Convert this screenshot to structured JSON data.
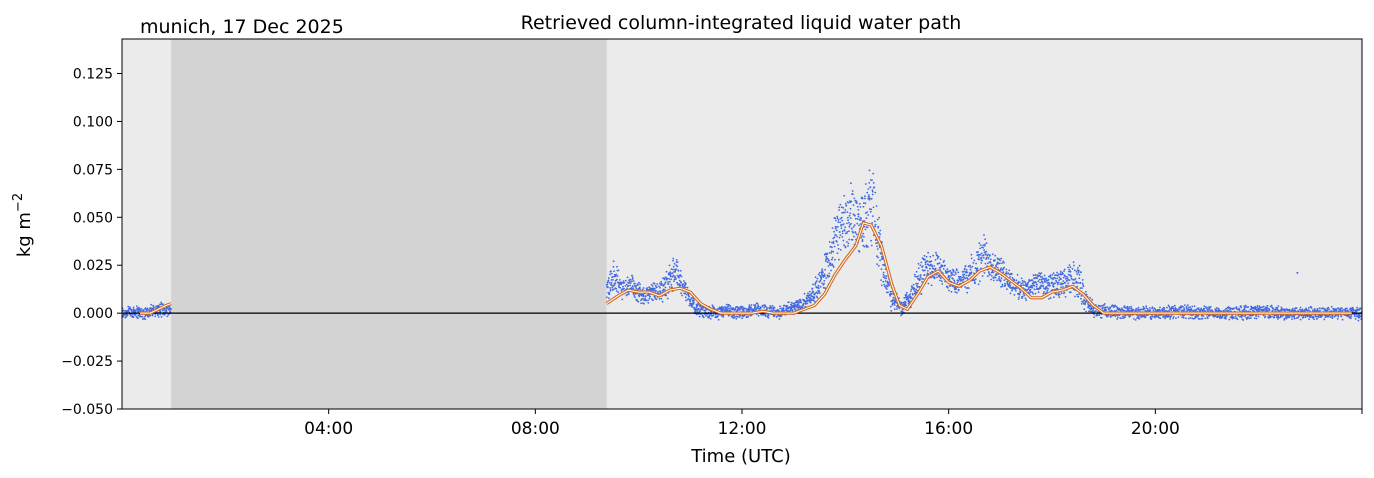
{
  "chart_data": {
    "type": "scatter",
    "title": "Retrieved column-integrated liquid water path",
    "subtitle": "munich, 17 Dec 2025",
    "xlabel": "Time (UTC)",
    "ylabel": "kg m",
    "ylabel_superscript": "−2",
    "xlim": [
      0,
      24
    ],
    "ylim": [
      -0.05,
      0.143
    ],
    "xticks": [
      4,
      8,
      12,
      16,
      20
    ],
    "xtick_labels": [
      "04:00",
      "08:00",
      "12:00",
      "16:00",
      "20:00"
    ],
    "yticks": [
      -0.05,
      -0.025,
      0.0,
      0.025,
      0.05,
      0.075,
      0.1,
      0.125
    ],
    "ytick_labels": [
      "−0.050",
      "−0.025",
      "0.000",
      "0.025",
      "0.050",
      "0.075",
      "0.100",
      "0.125"
    ],
    "shaded_regions": [
      {
        "x_start": 0.95,
        "x_end": 9.38,
        "color": "#d3d3d3"
      }
    ],
    "background_color": "#ebebeb",
    "zero_line": true,
    "series": [
      {
        "kind": "scatter",
        "color": "#4169e1",
        "segments": [
          {
            "x": [
              0.0,
              0.2,
              0.4,
              0.6,
              0.8,
              0.95
            ],
            "y": [
              0.0,
              0.001,
              0.0,
              0.001,
              0.002,
              0.002
            ],
            "spread": [
              0.004,
              0.004,
              0.004,
              0.004,
              0.004,
              0.004
            ]
          },
          {
            "x": [
              9.38,
              9.5,
              9.7,
              9.9,
              10.1,
              10.3,
              10.5,
              10.7,
              10.9,
              11.1,
              11.3,
              11.5,
              11.7,
              11.9,
              12.1,
              12.3,
              12.5,
              12.7,
              12.9,
              13.1,
              13.3,
              13.5,
              13.7,
              13.9,
              14.1,
              14.3,
              14.5,
              14.7,
              14.9,
              15.1,
              15.3,
              15.5,
              15.7,
              15.9,
              16.1,
              16.3,
              16.5,
              16.7,
              16.9,
              17.1,
              17.3,
              17.5,
              17.7,
              17.9,
              18.1,
              18.3,
              18.5,
              18.7,
              18.9,
              19.2,
              19.6,
              20.0,
              20.5,
              21.0,
              21.5,
              22.0,
              22.5,
              23.0,
              23.5,
              24.0
            ],
            "y": [
              0.012,
              0.018,
              0.012,
              0.014,
              0.009,
              0.011,
              0.013,
              0.022,
              0.012,
              0.002,
              0.001,
              0.0,
              0.001,
              0.0,
              0.001,
              0.002,
              0.001,
              0.0,
              0.002,
              0.004,
              0.008,
              0.015,
              0.03,
              0.045,
              0.05,
              0.048,
              0.058,
              0.028,
              0.008,
              0.003,
              0.01,
              0.022,
              0.024,
              0.02,
              0.017,
              0.018,
              0.022,
              0.03,
              0.024,
              0.019,
              0.014,
              0.012,
              0.016,
              0.014,
              0.015,
              0.016,
              0.018,
              0.004,
              0.001,
              0.001,
              0.0,
              0.0,
              0.001,
              0.0,
              0.0,
              0.001,
              0.0,
              0.0,
              0.0,
              0.0
            ],
            "spread": [
              0.008,
              0.012,
              0.007,
              0.008,
              0.005,
              0.006,
              0.008,
              0.01,
              0.006,
              0.004,
              0.004,
              0.004,
              0.004,
              0.004,
              0.004,
              0.004,
              0.004,
              0.004,
              0.004,
              0.004,
              0.005,
              0.008,
              0.016,
              0.018,
              0.02,
              0.018,
              0.028,
              0.014,
              0.008,
              0.005,
              0.008,
              0.012,
              0.01,
              0.008,
              0.007,
              0.008,
              0.012,
              0.014,
              0.01,
              0.008,
              0.007,
              0.006,
              0.008,
              0.007,
              0.008,
              0.01,
              0.012,
              0.006,
              0.004,
              0.004,
              0.004,
              0.004,
              0.004,
              0.004,
              0.004,
              0.004,
              0.004,
              0.004,
              0.004,
              0.004
            ]
          }
        ],
        "isolated_points": [
          [
            22.75,
            0.021
          ]
        ]
      },
      {
        "kind": "line",
        "color": "#d2691e",
        "inner_color": "#ffffff",
        "segments": [
          {
            "x": [
              0.35,
              0.55,
              0.7,
              0.85,
              0.95
            ],
            "y": [
              0.0,
              0.0,
              0.002,
              0.004,
              0.005
            ]
          },
          {
            "x": [
              9.38,
              9.6,
              9.8,
              10.0,
              10.2,
              10.4,
              10.6,
              10.8,
              11.0,
              11.2,
              11.4,
              11.6,
              11.8,
              12.0,
              12.2,
              12.4,
              12.6,
              12.8,
              13.0,
              13.2,
              13.4,
              13.6,
              13.8,
              14.0,
              14.2,
              14.35,
              14.5,
              14.7,
              14.9,
              15.05,
              15.2,
              15.4,
              15.6,
              15.8,
              16.0,
              16.2,
              16.4,
              16.6,
              16.8,
              17.0,
              17.2,
              17.4,
              17.6,
              17.8,
              18.0,
              18.2,
              18.4,
              18.6,
              18.8,
              19.0,
              19.4,
              20.0,
              21.0,
              22.0,
              23.0,
              23.8
            ],
            "y": [
              0.005,
              0.009,
              0.012,
              0.011,
              0.011,
              0.009,
              0.012,
              0.013,
              0.011,
              0.005,
              0.002,
              0.0,
              0.0,
              0.0,
              0.0,
              0.001,
              0.0,
              0.0,
              0.0,
              0.002,
              0.004,
              0.01,
              0.02,
              0.028,
              0.035,
              0.047,
              0.046,
              0.035,
              0.015,
              0.004,
              0.002,
              0.01,
              0.019,
              0.022,
              0.016,
              0.014,
              0.017,
              0.022,
              0.024,
              0.021,
              0.017,
              0.013,
              0.008,
              0.008,
              0.011,
              0.012,
              0.014,
              0.01,
              0.004,
              0.0,
              0.0,
              0.0,
              0.0,
              0.0,
              0.0,
              0.0
            ]
          }
        ]
      }
    ]
  }
}
